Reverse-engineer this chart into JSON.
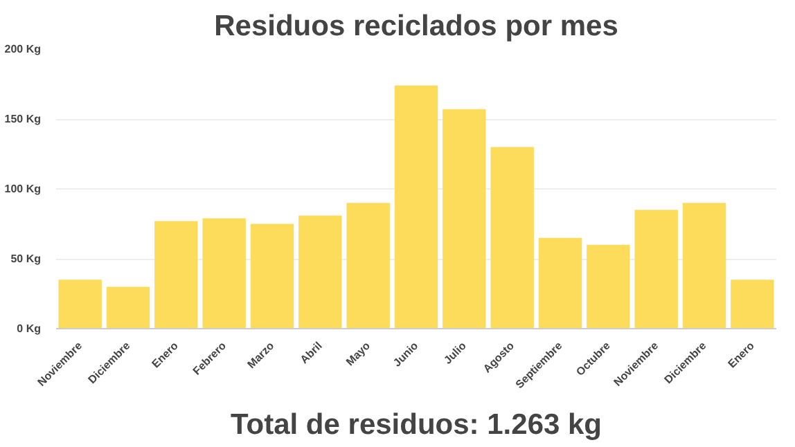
{
  "chart_data": {
    "type": "bar",
    "title": "Residuos reciclados por mes",
    "categories": [
      "Noviembre",
      "Diciembre",
      "Enero",
      "Febrero",
      "Marzo",
      "Abril",
      "Mayo",
      "Junio",
      "Julio",
      "Agosto",
      "Septiembre",
      "Octubre",
      "Noviembre",
      "Diciembre",
      "Enero"
    ],
    "values": [
      35,
      30,
      77,
      79,
      75,
      81,
      90,
      174,
      157,
      130,
      65,
      60,
      85,
      90,
      35
    ],
    "color": "#fddc5c",
    "ylim": [
      0,
      200
    ],
    "yticks": [
      {
        "value": 0,
        "label": "0 Kg"
      },
      {
        "value": 50,
        "label": "50 Kg"
      },
      {
        "value": 100,
        "label": "100 Kg"
      },
      {
        "value": 150,
        "label": "150 Kg"
      },
      {
        "value": 200,
        "label": "200 Kg"
      }
    ],
    "grid": "y",
    "annotations": [
      "Total de residuos: 1.263 kg"
    ]
  }
}
